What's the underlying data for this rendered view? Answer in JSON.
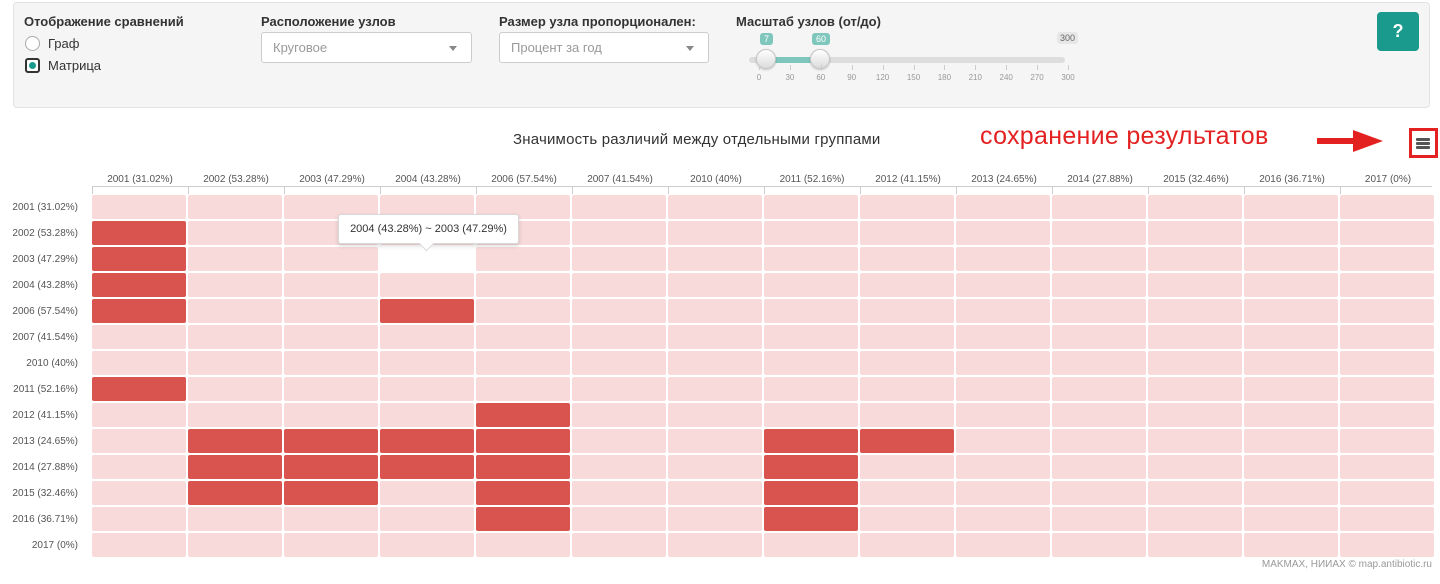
{
  "controls": {
    "comparison_display": {
      "label": "Отображение сравнений",
      "options": [
        {
          "label": "Граф",
          "checked": false
        },
        {
          "label": "Матрица",
          "checked": true
        }
      ]
    },
    "node_layout": {
      "label": "Расположение узлов",
      "value": "Круговое"
    },
    "node_size": {
      "label": "Размер узла пропорционален:",
      "value": "Процент за год"
    },
    "node_scale": {
      "label": "Масштаб узлов (от/до)",
      "min": "0",
      "max": "300",
      "from": "7",
      "to": "60",
      "ticks": [
        "0",
        "30",
        "60",
        "90",
        "120",
        "150",
        "180",
        "210",
        "240",
        "270",
        "300"
      ]
    },
    "help_label": "?"
  },
  "chart_title": "Значимость различий между отдельными группами",
  "annotation": "сохранение результатов",
  "tooltip": "2004 (43.28%) ~ 2003 (47.29%)",
  "credits": "MAKMAX, НИИАХ © map.antibiotic.ru",
  "colors": {
    "significant": "#d9534f",
    "not_significant": "#f8dadb",
    "accent": "#1a9a8c",
    "annotation": "#e32121"
  },
  "chart_data": {
    "type": "heatmap",
    "columns": [
      "2001 (31.02%)",
      "2002 (53.28%)",
      "2003 (47.29%)",
      "2004 (43.28%)",
      "2006 (57.54%)",
      "2007 (41.54%)",
      "2010 (40%)",
      "2011 (52.16%)",
      "2012 (41.15%)",
      "2013 (24.65%)",
      "2014 (27.88%)",
      "2015 (32.46%)",
      "2016 (36.71%)",
      "2017 (0%)"
    ],
    "rows": [
      "2001 (31.02%)",
      "2002 (53.28%)",
      "2003 (47.29%)",
      "2004 (43.28%)",
      "2006 (57.54%)",
      "2007 (41.54%)",
      "2010 (40%)",
      "2011 (52.16%)",
      "2012 (41.15%)",
      "2013 (24.65%)",
      "2014 (27.88%)",
      "2015 (32.46%)",
      "2016 (36.71%)",
      "2017 (0%)"
    ],
    "significant": [
      [
        0,
        0,
        0,
        0,
        0,
        0,
        0,
        0,
        0,
        0,
        0,
        0,
        0,
        0
      ],
      [
        1,
        0,
        0,
        0,
        0,
        0,
        0,
        0,
        0,
        0,
        0,
        0,
        0,
        0
      ],
      [
        1,
        0,
        0,
        0,
        0,
        0,
        0,
        0,
        0,
        0,
        0,
        0,
        0,
        0
      ],
      [
        1,
        0,
        0,
        0,
        0,
        0,
        0,
        0,
        0,
        0,
        0,
        0,
        0,
        0
      ],
      [
        1,
        0,
        0,
        1,
        0,
        0,
        0,
        0,
        0,
        0,
        0,
        0,
        0,
        0
      ],
      [
        0,
        0,
        0,
        0,
        0,
        0,
        0,
        0,
        0,
        0,
        0,
        0,
        0,
        0
      ],
      [
        0,
        0,
        0,
        0,
        0,
        0,
        0,
        0,
        0,
        0,
        0,
        0,
        0,
        0
      ],
      [
        1,
        0,
        0,
        0,
        0,
        0,
        0,
        0,
        0,
        0,
        0,
        0,
        0,
        0
      ],
      [
        0,
        0,
        0,
        0,
        1,
        0,
        0,
        0,
        0,
        0,
        0,
        0,
        0,
        0
      ],
      [
        0,
        1,
        1,
        1,
        1,
        0,
        0,
        1,
        1,
        0,
        0,
        0,
        0,
        0
      ],
      [
        0,
        1,
        1,
        1,
        1,
        0,
        0,
        1,
        0,
        0,
        0,
        0,
        0,
        0
      ],
      [
        0,
        1,
        1,
        0,
        1,
        0,
        0,
        1,
        0,
        0,
        0,
        0,
        0,
        0
      ],
      [
        0,
        0,
        0,
        0,
        1,
        0,
        0,
        1,
        0,
        0,
        0,
        0,
        0,
        0
      ],
      [
        0,
        0,
        0,
        0,
        0,
        0,
        0,
        0,
        0,
        0,
        0,
        0,
        0,
        0
      ]
    ],
    "hovered_cell": {
      "row": "2003 (47.29%)",
      "column": "2004 (43.28%)"
    }
  }
}
